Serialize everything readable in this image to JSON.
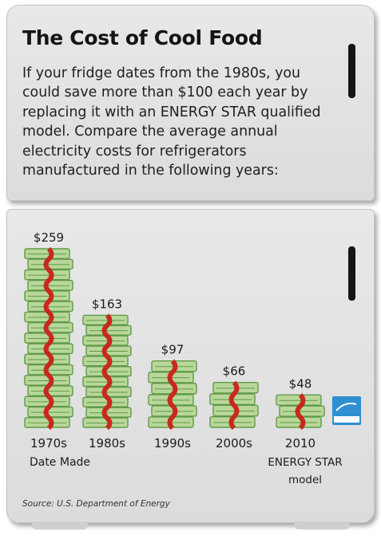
{
  "title": "The Cost of Cool Food",
  "intro": "If your fridge dates from the 1980s, you could save more than $100 each year by replacing it with an ENERGY STAR qualified model. Compare the average annual electricity costs for refrigerators manufactured in the following years:",
  "source": "Source: U.S. Department of Energy",
  "energy_star_icon": "energy-star-logo",
  "colors": {
    "money_light": "#b9d79a",
    "money_dark": "#5f9a48",
    "band": "#c8291e",
    "background": "#e2e2e2"
  },
  "chart_data": {
    "type": "bar",
    "categories": [
      "1970s",
      "1980s",
      "1990s",
      "2000s",
      "2010"
    ],
    "values": [
      259,
      163,
      97,
      66,
      48
    ],
    "value_labels": [
      "$259",
      "$163",
      "$97",
      "$66",
      "$48"
    ],
    "xlabel": "Date Made",
    "category_note": "ENERGY STAR model",
    "ylim": [
      0,
      259
    ]
  }
}
